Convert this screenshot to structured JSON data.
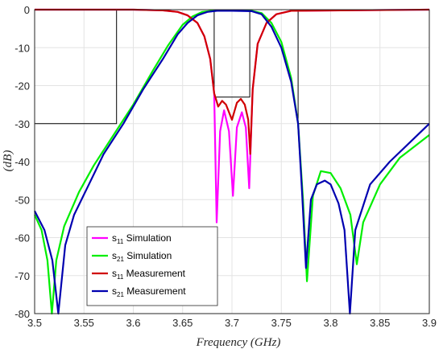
{
  "chart_data": {
    "type": "line",
    "xlabel": "Frequency (GHz)",
    "ylabel": "(dB)",
    "xlim": [
      3.5,
      3.9
    ],
    "ylim": [
      -80,
      0
    ],
    "grid": true,
    "x_ticks": [
      "3.5",
      "3.55",
      "3.6",
      "3.65",
      "3.7",
      "3.75",
      "3.8",
      "3.85",
      "3.9"
    ],
    "y_ticks": [
      "0",
      "-10",
      "-20",
      "-30",
      "-40",
      "-50",
      "-60",
      "-70",
      "-80"
    ],
    "legend_position": "bottom-left",
    "colors": {
      "s11_simulation": "#ff00ff",
      "s21_simulation": "#00ee00",
      "s11_measurement": "#d00000",
      "s21_measurement": "#0000b0",
      "spec_mask": "#000000"
    },
    "spec_mask": {
      "x": [
        3.5,
        3.583,
        3.583,
        3.767,
        3.767,
        3.9
      ],
      "y": [
        -30,
        -30,
        0,
        0,
        -30,
        -30
      ]
    },
    "passband_mask": {
      "x": [
        3.682,
        3.682,
        3.718,
        3.718
      ],
      "y": [
        0,
        -23,
        -23,
        0
      ]
    },
    "series": [
      {
        "name": "s11 Simulation",
        "legend_main": "s",
        "legend_sub": "11",
        "legend_rest": " Simulation",
        "color": "#ff00ff",
        "x": [
          3.5,
          3.6,
          3.63,
          3.645,
          3.655,
          3.665,
          3.672,
          3.678,
          3.682,
          3.6845,
          3.688,
          3.692,
          3.697,
          3.701,
          3.705,
          3.71,
          3.714,
          3.7175,
          3.721,
          3.726,
          3.735,
          3.745,
          3.76,
          3.9
        ],
        "y": [
          0,
          0,
          -0.2,
          -0.6,
          -1.5,
          -3.5,
          -7,
          -13,
          -22,
          -56,
          -32,
          -26.5,
          -32,
          -49,
          -31,
          -27,
          -31,
          -47,
          -21,
          -9,
          -3.5,
          -1.2,
          -0.3,
          0
        ]
      },
      {
        "name": "s21 Simulation",
        "legend_main": "s",
        "legend_sub": "21",
        "legend_rest": " Simulation",
        "color": "#00ee00",
        "x": [
          3.5,
          3.507,
          3.513,
          3.5175,
          3.522,
          3.53,
          3.545,
          3.56,
          3.58,
          3.6,
          3.62,
          3.635,
          3.65,
          3.66,
          3.67,
          3.68,
          3.7,
          3.72,
          3.73,
          3.74,
          3.75,
          3.76,
          3.767,
          3.772,
          3.776,
          3.782,
          3.79,
          3.8,
          3.81,
          3.82,
          3.8265,
          3.833,
          3.85,
          3.87,
          3.9
        ],
        "y": [
          -54,
          -58,
          -66,
          -80,
          -66,
          -57,
          -48,
          -41,
          -33,
          -25,
          -16,
          -9.5,
          -4,
          -1.8,
          -0.6,
          -0.3,
          -0.2,
          -0.3,
          -0.9,
          -3.5,
          -8.5,
          -18,
          -30,
          -50,
          -71.5,
          -49,
          -42.5,
          -43,
          -47,
          -54,
          -67,
          -56,
          -46,
          -39,
          -33
        ]
      },
      {
        "name": "s11 Measurement",
        "legend_main": "s",
        "legend_sub": "11",
        "legend_rest": " Measurement",
        "color": "#d00000",
        "x": [
          3.5,
          3.6,
          3.63,
          3.645,
          3.655,
          3.665,
          3.672,
          3.678,
          3.682,
          3.686,
          3.69,
          3.694,
          3.7,
          3.705,
          3.709,
          3.713,
          3.7165,
          3.7185,
          3.721,
          3.726,
          3.735,
          3.745,
          3.76,
          3.9
        ],
        "y": [
          0,
          0,
          -0.2,
          -0.6,
          -1.5,
          -3.5,
          -7,
          -13,
          -22,
          -25.5,
          -24,
          -25,
          -29,
          -24.5,
          -23.5,
          -25,
          -29,
          -38,
          -21,
          -9,
          -3.5,
          -1.2,
          -0.3,
          0
        ]
      },
      {
        "name": "s21 Measurement",
        "legend_main": "s",
        "legend_sub": "21",
        "legend_rest": " Measurement",
        "color": "#0000b0",
        "x": [
          3.5,
          3.51,
          3.518,
          3.524,
          3.531,
          3.54,
          3.555,
          3.57,
          3.59,
          3.61,
          3.63,
          3.645,
          3.655,
          3.665,
          3.675,
          3.685,
          3.7,
          3.72,
          3.73,
          3.74,
          3.75,
          3.76,
          3.767,
          3.771,
          3.775,
          3.78,
          3.786,
          3.794,
          3.8,
          3.808,
          3.814,
          3.8195,
          3.825,
          3.84,
          3.86,
          3.88,
          3.9
        ],
        "y": [
          -53,
          -58,
          -66,
          -80,
          -62,
          -54,
          -46,
          -38,
          -30,
          -21,
          -13,
          -6.5,
          -3.5,
          -1.5,
          -0.6,
          -0.3,
          -0.3,
          -0.4,
          -1.2,
          -4.5,
          -10,
          -19,
          -30,
          -48,
          -68,
          -50,
          -46,
          -45,
          -46,
          -51,
          -58,
          -80,
          -58,
          -46,
          -40,
          -35,
          -30
        ]
      }
    ]
  }
}
